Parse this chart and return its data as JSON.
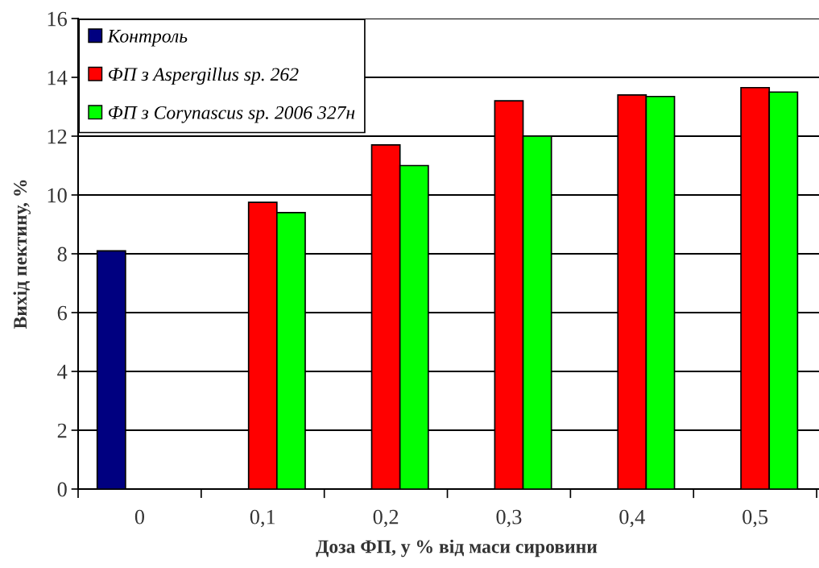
{
  "chart_data": {
    "type": "bar",
    "xlabel": "Доза ФП, у % від маси сировини",
    "ylabel": "Вихід пектину, %",
    "categories": [
      "0",
      "0,1",
      "0,2",
      "0,3",
      "0,4",
      "0,5"
    ],
    "series": [
      {
        "name": "Контроль",
        "color": "#000080",
        "values": [
          8.1,
          null,
          null,
          null,
          null,
          null
        ]
      },
      {
        "name": "ФП з Aspergillus sp. 262",
        "color": "#ff0000",
        "values": [
          null,
          9.75,
          11.7,
          13.2,
          13.4,
          13.65
        ]
      },
      {
        "name": "ФП з Corynascus sp. 2006 327н",
        "color": "#00ff00",
        "values": [
          null,
          9.4,
          11.0,
          12.0,
          13.35,
          13.5
        ]
      }
    ],
    "ylim": [
      0,
      16
    ],
    "yticks": [
      0,
      2,
      4,
      6,
      8,
      10,
      12,
      14,
      16
    ],
    "grid": "y",
    "legend": "top left"
  }
}
